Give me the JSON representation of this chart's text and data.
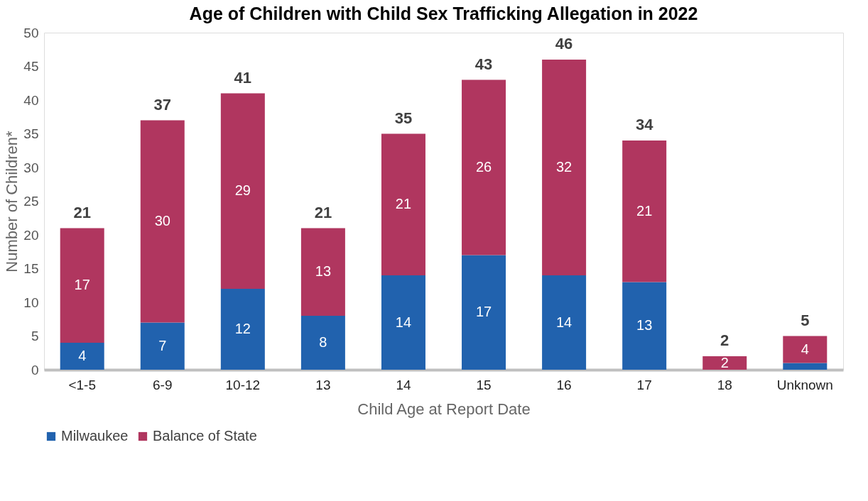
{
  "chart_data": {
    "type": "bar",
    "stacked": true,
    "title": "Age of Children with Child Sex Trafficking Allegation in 2022",
    "xlabel": "Child Age at Report Date",
    "ylabel": "Number of Children*",
    "categories": [
      "<1-5",
      "6-9",
      "10-12",
      "13",
      "14",
      "15",
      "16",
      "17",
      "18",
      "Unknown"
    ],
    "series": [
      {
        "name": "Milwaukee",
        "color": "#2162ae",
        "values": [
          4,
          7,
          12,
          8,
          14,
          17,
          14,
          13,
          0,
          1
        ],
        "value_labels": [
          "4",
          "7",
          "12",
          "8",
          "14",
          "17",
          "14",
          "13",
          null,
          null
        ]
      },
      {
        "name": "Balance of State",
        "color": "#b0365f",
        "values": [
          17,
          30,
          29,
          13,
          21,
          26,
          32,
          21,
          2,
          4
        ],
        "value_labels": [
          "17",
          "30",
          "29",
          "13",
          "21",
          "26",
          "32",
          "21",
          "2",
          "4"
        ]
      }
    ],
    "totals": [
      "21",
      "37",
      "41",
      "21",
      "35",
      "43",
      "46",
      "34",
      "2",
      "5"
    ],
    "ylim": [
      0,
      50
    ],
    "yticks": [
      0,
      5,
      10,
      15,
      20,
      25,
      30,
      35,
      40,
      45,
      50
    ],
    "grid": false,
    "legend": "bottom"
  }
}
